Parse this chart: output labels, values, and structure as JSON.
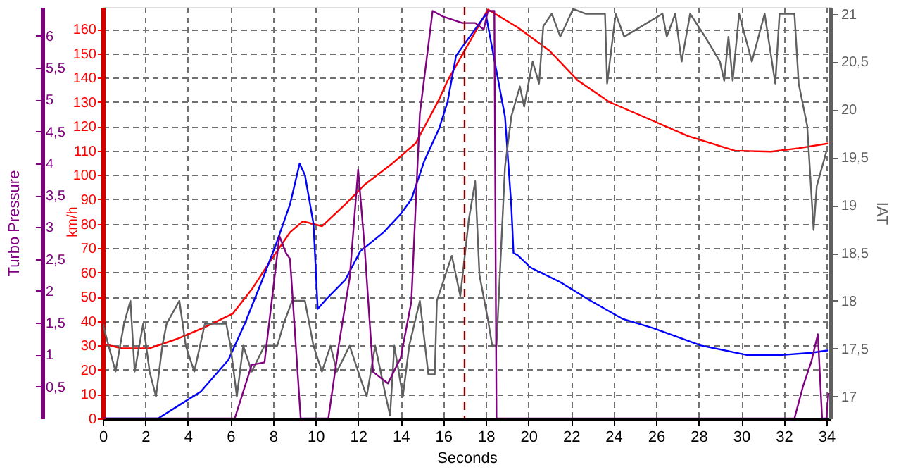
{
  "chart_data": {
    "type": "line",
    "xlabel": "Seconds",
    "ylabel": "km/h",
    "y2label": "IAT",
    "y3label": "Turbo Pressure",
    "xlim": [
      0,
      34.2
    ],
    "xticks": [
      0,
      2,
      4,
      6,
      8,
      10,
      12,
      14,
      16,
      18,
      20,
      22,
      24,
      26,
      28,
      30,
      32,
      34
    ],
    "ylim": [
      0,
      169
    ],
    "yticks": [
      0,
      10,
      20,
      30,
      40,
      50,
      60,
      70,
      80,
      90,
      100,
      110,
      120,
      130,
      140,
      150,
      160
    ],
    "y2lim": [
      16.77,
      21.07
    ],
    "y2ticks": [
      {
        "value": 17,
        "label": "17"
      },
      {
        "value": 17.5,
        "label": "17,5"
      },
      {
        "value": 18,
        "label": "18"
      },
      {
        "value": 18.5,
        "label": "18,5"
      },
      {
        "value": 19,
        "label": "19"
      },
      {
        "value": 19.5,
        "label": "19,5"
      },
      {
        "value": 20,
        "label": "20"
      },
      {
        "value": 20.5,
        "label": "20,5"
      },
      {
        "value": 21,
        "label": "21"
      }
    ],
    "y3lim": [
      0,
      6.45
    ],
    "y3ticks": [
      {
        "value": 0.5,
        "label": "0,5"
      },
      {
        "value": 1,
        "label": "1"
      },
      {
        "value": 1.5,
        "label": "1,5"
      },
      {
        "value": 2,
        "label": "2"
      },
      {
        "value": 2.5,
        "label": "2,5"
      },
      {
        "value": 3,
        "label": "3"
      },
      {
        "value": 3.5,
        "label": "3,5"
      },
      {
        "value": 4,
        "label": "4"
      },
      {
        "value": 4.5,
        "label": "4,5"
      },
      {
        "value": 5,
        "label": "5"
      },
      {
        "value": 5.5,
        "label": "5,5"
      },
      {
        "value": 6,
        "label": "6"
      }
    ],
    "grid": true,
    "line_style": "solid",
    "marker": "none",
    "ref_lines": [
      {
        "axis": "x",
        "value": 17,
        "color": "#800000",
        "line_style": "dashed"
      }
    ],
    "series": [
      {
        "color": "#606060",
        "axis": "y2",
        "x": [
          0,
          0.6,
          1.0,
          1.3,
          1.5,
          1.9,
          2.2,
          2.5,
          2.8,
          3.0,
          3.6,
          3.9,
          4.3,
          4.8,
          5.8,
          6.0,
          6.3,
          6.6,
          7.0,
          7.6,
          8.2,
          8.5,
          8.9,
          9.5,
          9.9,
          10.3,
          10.7,
          11.0,
          11.6,
          12.0,
          12.4,
          12.8,
          13.3,
          13.5,
          13.7,
          14.1,
          14.4,
          14.9,
          15.3,
          15.6,
          15.7,
          16.4,
          16.8,
          17.2,
          17.5,
          17.7,
          18.1,
          18.3,
          18.5,
          18.9,
          19.2,
          19.6,
          19.8,
          20.2,
          20.5,
          20.7,
          21.1,
          21.5,
          22.1,
          22.7,
          23.6,
          23.7,
          24.1,
          24.5,
          26.3,
          26.5,
          26.9,
          27.2,
          27.6,
          28.3,
          29.0,
          29.2,
          29.4,
          29.6,
          29.9,
          30.5,
          31.1,
          31.6,
          31.8,
          32.5,
          32.7,
          33.1,
          33.4,
          33.55,
          33.8,
          34.0
        ],
        "values": [
          17.76,
          17.26,
          17.76,
          18.0,
          17.26,
          17.76,
          17.26,
          17.0,
          17.53,
          17.76,
          18.0,
          17.53,
          17.26,
          17.76,
          17.76,
          17.53,
          17.0,
          17.53,
          17.26,
          17.53,
          17.53,
          17.76,
          18.0,
          18.0,
          17.53,
          17.26,
          17.53,
          17.26,
          17.53,
          17.26,
          17.0,
          17.53,
          17.0,
          16.8,
          17.53,
          17.0,
          17.53,
          18.0,
          17.23,
          17.23,
          18.0,
          18.47,
          18.05,
          18.85,
          19.25,
          18.27,
          17.8,
          17.53,
          17.53,
          19.4,
          19.93,
          20.24,
          20.03,
          20.5,
          20.27,
          20.87,
          21.0,
          20.76,
          21.05,
          21.0,
          21.0,
          20.27,
          21.0,
          20.76,
          21.0,
          20.76,
          21.0,
          20.5,
          21.0,
          20.76,
          20.5,
          20.3,
          20.76,
          20.3,
          21.0,
          20.5,
          21.0,
          20.27,
          21.0,
          21.0,
          20.27,
          19.83,
          18.74,
          19.2,
          19.4,
          19.56
        ]
      },
      {
        "color": "#ff0000",
        "axis": "y",
        "x": [
          0,
          0.9,
          2.2,
          3.5,
          4.8,
          6.1,
          7.0,
          7.9,
          8.8,
          9.4,
          10.3,
          11.4,
          12.3,
          13.6,
          14.7,
          15.8,
          16.2,
          18.1,
          19.5,
          21.0,
          22.3,
          23.8,
          25.4,
          27.5,
          29.7,
          31.4,
          32.7,
          34.1
        ],
        "values": [
          30.7,
          28.8,
          28.8,
          32.7,
          37.5,
          43,
          53,
          65,
          76.5,
          81,
          79,
          88,
          96,
          104.7,
          113,
          131,
          138.7,
          168,
          160.6,
          151,
          139,
          130,
          124,
          116,
          110,
          109.6,
          111,
          113
        ]
      },
      {
        "color": "#0000ff",
        "axis": "y",
        "x": [
          0,
          2.6,
          4.6,
          5.9,
          6.7,
          7.5,
          8.1,
          8.8,
          9.25,
          9.5,
          9.9,
          10.1,
          10.5,
          11.4,
          12.1,
          13.2,
          14.0,
          14.5,
          15.1,
          15.8,
          16.2,
          16.6,
          18.0,
          18.9,
          19.2,
          19.3,
          19.5,
          20.1,
          21.5,
          22.8,
          24.4,
          25.9,
          28.1,
          30.3,
          31.8,
          33.3,
          34.1
        ],
        "values": [
          0,
          0,
          11,
          24,
          39.5,
          57,
          70.6,
          88,
          104.7,
          100,
          80,
          45,
          49,
          57,
          68.7,
          76.5,
          84,
          90,
          105.6,
          119,
          130,
          149,
          166,
          124,
          87,
          68,
          67,
          62,
          56,
          49,
          41,
          37,
          30,
          26,
          26,
          27,
          28
        ]
      },
      {
        "color": "#800080",
        "axis": "y3",
        "x": [
          0,
          6.2,
          7.0,
          7.6,
          8.3,
          8.6,
          8.8,
          9.3,
          10.6,
          11.1,
          11.6,
          12.0,
          12.3,
          12.7,
          13.4,
          14.0,
          14.5,
          14.9,
          15.5,
          16.0,
          16.9,
          17.5,
          17.9,
          18.1,
          18.4,
          18.5,
          32.5,
          32.9,
          33.3,
          33.6,
          33.8,
          34.0,
          34.1
        ],
        "values": [
          0,
          0,
          0.84,
          0.88,
          2.86,
          2.6,
          2.5,
          0,
          0,
          1.17,
          2.2,
          3.9,
          2.7,
          0.73,
          0.55,
          0.95,
          1.83,
          4.78,
          6.39,
          6.3,
          6.2,
          6.2,
          6.1,
          6.39,
          6.39,
          0,
          0,
          0.5,
          0.9,
          1.32,
          0,
          0,
          0.4
        ]
      }
    ]
  }
}
